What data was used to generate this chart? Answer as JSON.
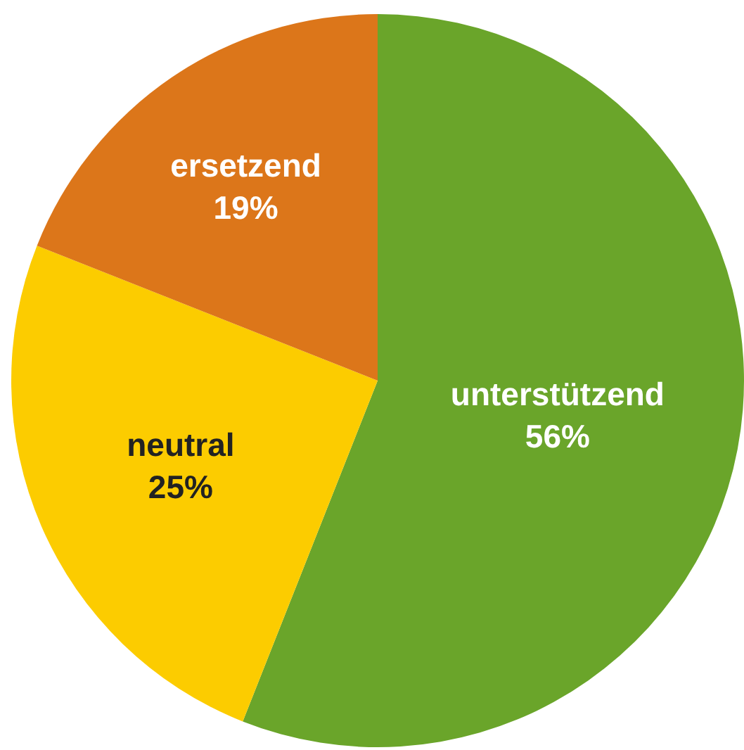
{
  "chart_data": {
    "type": "pie",
    "categories": [
      "unterstützend",
      "neutral",
      "ersetzend"
    ],
    "values": [
      56,
      25,
      19
    ],
    "value_labels": [
      "56%",
      "25%",
      "19%"
    ],
    "colors": [
      "#6aa52a",
      "#fccc00",
      "#dc761a"
    ]
  }
}
